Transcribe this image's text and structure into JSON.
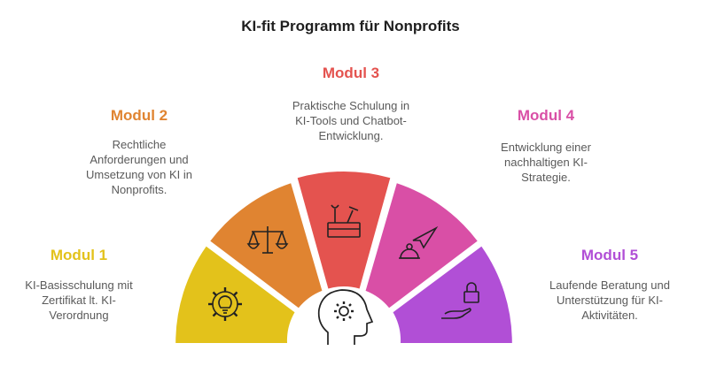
{
  "title": "KI-fit Programm für Nonprofits",
  "modules": [
    {
      "title": "Modul 1",
      "desc": "KI-Basisschulung mit\nZertifikat lt. KI-\nVerordnung",
      "color": "#e3c21b",
      "icon": "gear-lightbulb-icon"
    },
    {
      "title": "Modul 2",
      "desc": "Rechtliche\nAnforderungen und\nUmsetzung von KI in\nNonprofits.",
      "color": "#e08431",
      "icon": "scales-icon"
    },
    {
      "title": "Modul 3",
      "desc": "Praktische Schulung in\nKI-Tools und Chatbot-\nEntwicklung.",
      "color": "#e4534f",
      "icon": "toolbox-icon"
    },
    {
      "title": "Modul 4",
      "desc": "Entwicklung einer\nnachhaltigen KI-\nStrategie.",
      "color": "#d94fa6",
      "icon": "target-arrow-icon"
    },
    {
      "title": "Modul 5",
      "desc": "Laufende Beratung und\nUnterstützung für KI-\nAktivitäten.",
      "color": "#b14fd6",
      "icon": "lock-hand-icon"
    }
  ],
  "center_icon": "head-gear-icon"
}
